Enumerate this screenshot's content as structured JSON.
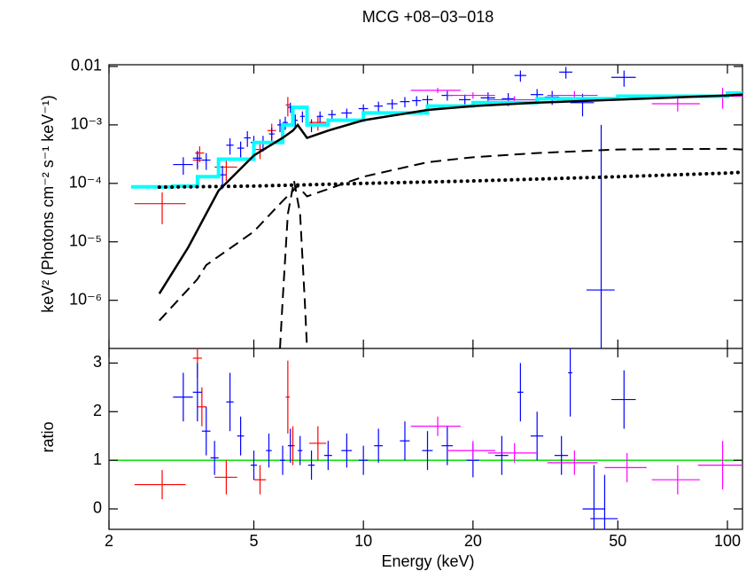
{
  "chart_data": [
    {
      "type": "errorbar",
      "title": "MCG +08−03−018",
      "ylabel": "keV² (Photons cm⁻² s⁻¹ keV⁻¹)",
      "xlog": true,
      "ylog": true,
      "xlim": [
        2,
        110
      ],
      "xticks": [
        2,
        5,
        10,
        20,
        50,
        100
      ],
      "ylim": [
        1.5e-07,
        0.0107
      ],
      "yticks": [
        {
          "value": 1e-06,
          "label": "10⁻⁶"
        },
        {
          "value": 1e-05,
          "label": "10⁻⁵"
        },
        {
          "value": 0.0001,
          "label": "10⁻⁴"
        },
        {
          "value": 0.001,
          "label": "10⁻³"
        },
        0.01
      ],
      "models": [
        {
          "color": "#00ffff",
          "style": "step",
          "x": [
            2.3,
            3.0,
            3.5,
            4.0,
            5.0,
            6.0,
            6.4,
            7.0,
            8.0,
            10,
            15,
            20,
            30,
            50,
            100,
            110
          ],
          "values": [
            8.7e-05,
            9e-05,
            0.00013,
            0.00026,
            0.0005,
            0.001,
            0.002,
            0.001,
            0.0012,
            0.0016,
            0.0021,
            0.0024,
            0.0028,
            0.0031,
            0.0035,
            0.0036
          ]
        },
        {
          "color": "#000000",
          "style": "solid",
          "x": [
            2.75,
            3.3,
            4.0,
            5.0,
            6.0,
            6.4,
            6.6,
            7.0,
            8.0,
            10,
            15,
            20,
            30,
            50,
            100,
            110
          ],
          "values": [
            1.3e-06,
            8e-06,
            7.5e-05,
            0.0003,
            0.0006,
            0.0008,
            0.001,
            0.0006,
            0.0008,
            0.0012,
            0.0018,
            0.0021,
            0.0024,
            0.0027,
            0.0032,
            0.0033
          ]
        },
        {
          "color": "#000000",
          "style": "dashed",
          "x": [
            2.75,
            3.5,
            3.7,
            5.0,
            6.0,
            6.6,
            7.0,
            8.0,
            10,
            15,
            20,
            30,
            50,
            100,
            110
          ],
          "values": [
            4.5e-07,
            2.3e-06,
            4e-06,
            1.5e-05,
            5e-05,
            9e-05,
            6e-05,
            8e-05,
            0.00013,
            0.00023,
            0.00028,
            0.00033,
            0.00038,
            0.00039,
            0.00038
          ]
        },
        {
          "color": "#000000",
          "style": "dashed",
          "x": [
            5.9,
            6.0,
            6.2,
            6.45,
            6.7,
            6.9,
            7.0
          ],
          "values": [
            1.5e-07,
            1e-06,
            3e-05,
            0.00011,
            3e-05,
            1e-06,
            1.5e-07
          ]
        },
        {
          "color": "#000000",
          "style": "dotted",
          "x": [
            2.75,
            5,
            10,
            20,
            50,
            100,
            110
          ],
          "values": [
            8.6e-05,
            9e-05,
            0.0001,
            0.00011,
            0.00013,
            0.00015,
            0.000155
          ]
        }
      ],
      "series": [
        {
          "color": "#ff0000",
          "x": [
            2.8,
            3.5,
            3.55,
            4.2,
            5.2,
            5.6,
            6.2,
            6.4,
            7.5
          ],
          "xerr": [
            0.45,
            0.1,
            0.1,
            0.3,
            0.2,
            0.15,
            0.08,
            0.08,
            0.4
          ],
          "values": [
            4.5e-05,
            0.00025,
            0.00033,
            0.00019,
            0.00038,
            0.0008,
            0.0022,
            0.0015,
            0.0011
          ],
          "yerr": [
            2.5e-05,
            8e-05,
            0.0001,
            8e-05,
            0.00012,
            0.00025,
            0.0008,
            0.0004,
            0.0003
          ]
        },
        {
          "color": "#0000ff",
          "x": [
            3.2,
            3.5,
            3.7,
            4.1,
            4.3,
            4.6,
            4.8,
            5.0,
            5.3,
            5.6,
            5.9,
            6.1,
            6.3,
            6.5,
            6.8,
            7.2,
            7.6,
            8.2,
            9,
            10,
            11,
            12,
            13,
            14,
            15,
            17,
            19,
            22,
            25,
            27,
            30,
            33,
            36,
            40,
            45,
            52
          ],
          "xerr": [
            0.2,
            0.1,
            0.1,
            0.1,
            0.1,
            0.1,
            0.1,
            0.1,
            0.1,
            0.1,
            0.1,
            0.1,
            0.1,
            0.1,
            0.1,
            0.15,
            0.15,
            0.2,
            0.3,
            0.3,
            0.3,
            0.4,
            0.4,
            0.4,
            0.5,
            0.6,
            0.7,
            1,
            1,
            1,
            1.2,
            1.5,
            1.5,
            3,
            4,
            4
          ],
          "values": [
            0.00021,
            0.00027,
            0.00025,
            0.00014,
            0.00045,
            0.0004,
            0.0006,
            0.0005,
            0.0005,
            0.0007,
            0.001,
            0.0011,
            0.002,
            0.0012,
            0.0014,
            0.001,
            0.0014,
            0.0015,
            0.0016,
            0.0019,
            0.0021,
            0.0023,
            0.0025,
            0.0026,
            0.0027,
            0.0032,
            0.0027,
            0.0029,
            0.0028,
            0.007,
            0.0033,
            0.003,
            0.008,
            0.0024,
            1.5e-06,
            0.0065
          ],
          "yerr": [
            7e-05,
            9e-05,
            8e-05,
            6e-05,
            0.00014,
            0.00012,
            0.00018,
            0.00015,
            0.00015,
            0.0002,
            0.00025,
            0.00028,
            0.0004,
            0.0003,
            0.0003,
            0.00025,
            0.0003,
            0.0003,
            0.0003,
            0.00035,
            0.0004,
            0.00045,
            0.0005,
            0.0005,
            0.0005,
            0.0006,
            0.0006,
            0.0007,
            0.0007,
            0.0015,
            0.0008,
            0.0008,
            0.0018,
            0.001,
            0.001,
            0.002
          ]
        },
        {
          "color": "#ff00ff",
          "x": [
            16,
            20,
            26,
            38,
            73,
            97
          ],
          "xerr": [
            2.5,
            3,
            4,
            6,
            11,
            14
          ],
          "values": [
            0.0039,
            0.0032,
            0.0027,
            0.0032,
            0.0023,
            0.0031
          ],
          "yerr": [
            0.0004,
            0.0004,
            0.0004,
            0.0006,
            0.0006,
            0.0012
          ]
        }
      ]
    },
    {
      "type": "errorbar",
      "xlabel": "Energy (keV)",
      "ylabel": "ratio",
      "xlog": true,
      "ylog": false,
      "xlim": [
        2,
        110
      ],
      "xticks": [
        2,
        5,
        10,
        20,
        50,
        100
      ],
      "ylim": [
        -0.42,
        3.3
      ],
      "yticks": [
        0,
        1,
        2,
        3
      ],
      "reference": 1,
      "reference_color": "#00dd00",
      "series": [
        {
          "color": "#ff0000",
          "x": [
            2.8,
            3.5,
            3.6,
            4.2,
            5.2,
            6.2,
            6.4,
            7.5
          ],
          "xerr": [
            0.45,
            0.1,
            0.1,
            0.3,
            0.2,
            0.08,
            0.08,
            0.4
          ],
          "values": [
            0.5,
            3.1,
            2.1,
            0.65,
            0.6,
            2.3,
            1.3,
            1.35
          ],
          "yerr": [
            0.3,
            0.4,
            0.4,
            0.35,
            0.3,
            0.75,
            0.4,
            0.35
          ]
        },
        {
          "color": "#0000ff",
          "x": [
            3.2,
            3.5,
            3.7,
            3.9,
            4.3,
            4.6,
            5.0,
            5.5,
            6.0,
            6.3,
            6.7,
            7.2,
            8,
            9,
            10,
            11,
            13,
            15,
            17,
            20,
            24,
            27,
            30,
            35,
            37,
            43,
            46,
            52
          ],
          "xerr": [
            0.2,
            0.1,
            0.1,
            0.1,
            0.1,
            0.1,
            0.1,
            0.1,
            0.1,
            0.1,
            0.1,
            0.15,
            0.2,
            0.3,
            0.3,
            0.3,
            0.4,
            0.5,
            0.6,
            0.8,
            1,
            0.5,
            1.2,
            1.5,
            0.5,
            3,
            4,
            4
          ],
          "values": [
            2.3,
            2.4,
            1.6,
            1.05,
            2.2,
            1.5,
            0.9,
            1.2,
            1.0,
            1.3,
            1.2,
            0.9,
            1.1,
            1.2,
            1.0,
            1.3,
            1.4,
            1.2,
            1.3,
            1.0,
            1.1,
            2.4,
            1.5,
            1.1,
            2.8,
            0.0,
            -0.2,
            2.25
          ],
          "yerr": [
            0.5,
            0.6,
            0.5,
            0.35,
            0.6,
            0.4,
            0.3,
            0.35,
            0.3,
            0.35,
            0.3,
            0.3,
            0.3,
            0.35,
            0.3,
            0.35,
            0.4,
            0.4,
            0.4,
            0.35,
            0.4,
            0.6,
            0.5,
            0.4,
            0.9,
            0.9,
            0.9,
            0.6
          ]
        },
        {
          "color": "#ff00ff",
          "x": [
            16,
            20,
            26,
            38,
            53,
            73,
            97
          ],
          "xerr": [
            2.5,
            3,
            4,
            6,
            7,
            11,
            14
          ],
          "values": [
            1.7,
            1.2,
            1.15,
            0.95,
            0.85,
            0.6,
            0.9
          ],
          "yerr": [
            0.2,
            0.2,
            0.2,
            0.25,
            0.3,
            0.3,
            0.5
          ]
        }
      ]
    }
  ]
}
